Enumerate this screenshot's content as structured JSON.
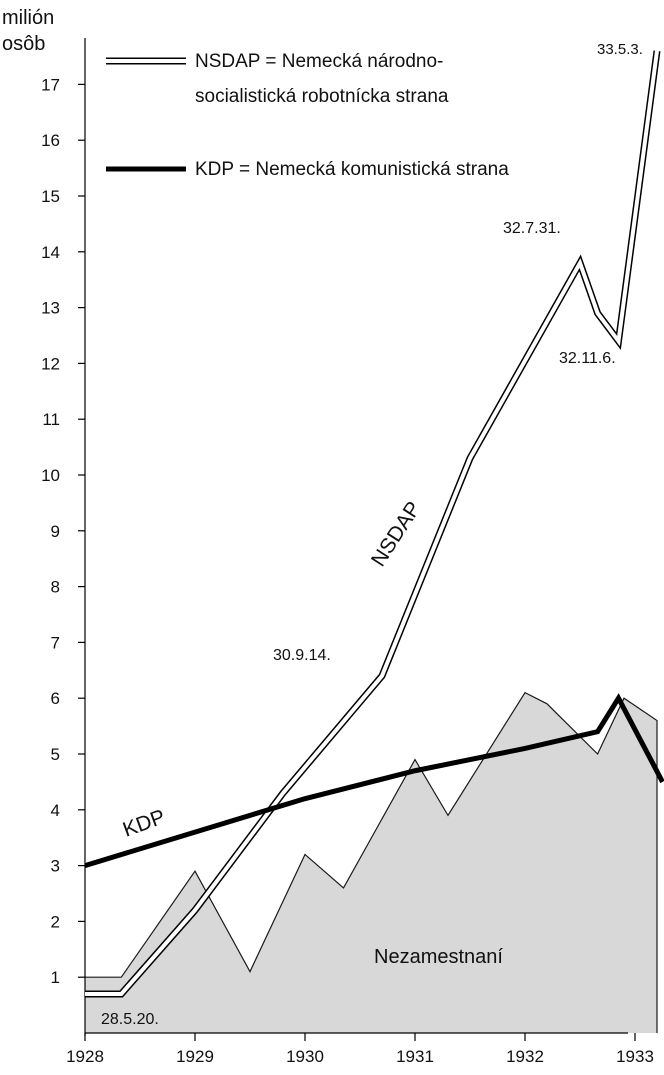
{
  "chart_data": {
    "type": "line",
    "ylabel": "milión\nosôb",
    "xlim": [
      1928,
      1933.3
    ],
    "ylim": [
      0,
      17.8
    ],
    "x_ticks": [
      "1928",
      "1929",
      "1930",
      "1931",
      "1932",
      "1933"
    ],
    "y_ticks": [
      "1",
      "2",
      "3",
      "4",
      "5",
      "6",
      "7",
      "8",
      "9",
      "10",
      "11",
      "12",
      "13",
      "14",
      "15",
      "16",
      "17"
    ],
    "legend": [
      {
        "line1": "NSDAP = Nemecká národno-",
        "line2": "socialistická robotnícka strana",
        "style": "double-line"
      },
      {
        "line1": "KDP = Nemecká komunistická strana",
        "line2": "",
        "style": "thick-line"
      }
    ],
    "series": [
      {
        "name": "NSDAP",
        "x": [
          1928.0,
          1928.33,
          1929.0,
          1929.8,
          1930.7,
          1931.5,
          1932.5,
          1932.66,
          1932.85,
          1933.2
        ],
        "y": [
          0.7,
          0.7,
          2.2,
          4.3,
          6.4,
          10.3,
          13.8,
          12.9,
          12.4,
          17.6
        ]
      },
      {
        "name": "KDP",
        "x": [
          1928.0,
          1929.0,
          1930.0,
          1931.0,
          1932.0,
          1932.66,
          1932.85,
          1933.25
        ],
        "y": [
          3.0,
          3.6,
          4.2,
          4.7,
          5.1,
          5.4,
          6.0,
          4.5
        ]
      },
      {
        "name": "Nezamestnaní",
        "x": [
          1928.0,
          1928.33,
          1929.0,
          1929.5,
          1930.0,
          1930.35,
          1931.0,
          1931.3,
          1932.0,
          1932.2,
          1932.66,
          1932.9,
          1933.2
        ],
        "y": [
          1.0,
          1.0,
          2.9,
          1.1,
          3.2,
          2.6,
          4.9,
          3.9,
          6.1,
          5.9,
          5.0,
          6.0,
          5.6
        ]
      }
    ],
    "annotations": [
      {
        "text": "28.5.20.",
        "x": 1928.33,
        "y": 0.25
      },
      {
        "text": "30.9.14.",
        "x": 1930.55,
        "y": 6.6
      },
      {
        "text": "32.7.31.",
        "x": 1932.2,
        "y": 14.6
      },
      {
        "text": "32.11.6.",
        "x": 1932.8,
        "y": 11.4
      },
      {
        "text": "33.5.3.",
        "x": 1933.05,
        "y": 17.6
      },
      {
        "text": "NSDAP",
        "x": 1931.2,
        "y": 8.7,
        "rotation": -57
      },
      {
        "text": "KDP",
        "x": 1928.55,
        "y": 3.7,
        "rotation": -20
      },
      {
        "text": "Nezamestnaní",
        "x": 1932.0,
        "y": 1.4
      }
    ],
    "grid": false
  }
}
